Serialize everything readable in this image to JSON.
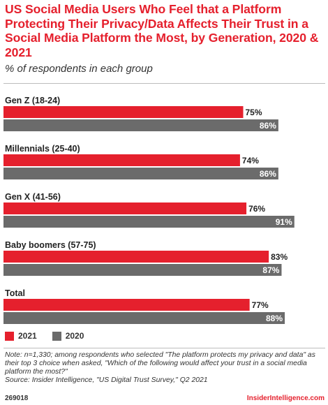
{
  "title": "US Social Media Users Who Feel that a Platform Protecting Their Privacy/Data Affects Their Trust in a Social Media Platform the Most, by Generation, 2020 & 2021",
  "subtitle": "% of respondents in each group",
  "colors": {
    "y2021": "#e5202d",
    "y2020": "#6b6b6b",
    "title": "#e5202d"
  },
  "legend": {
    "y2021": "2021",
    "y2020": "2020"
  },
  "note": "Note: n=1,330; among respondents who selected \"The platform protects my privacy and data\" as their top 3 choice when asked, \"Which of the following would affect your trust in a social media platform the most?\"",
  "source": "Source: Insider Intelligence, \"US Digital Trust Survey,\" Q2 2021",
  "footer": {
    "id": "269018",
    "brand": "InsiderIntelligence.com"
  },
  "chart_data": {
    "type": "bar",
    "orientation": "horizontal",
    "categories": [
      "Gen Z (18-24)",
      "Millennials (25-40)",
      "Gen X (41-56)",
      "Baby boomers (57-75)",
      "Total"
    ],
    "series": [
      {
        "name": "2021",
        "values": [
          75,
          74,
          76,
          83,
          77
        ]
      },
      {
        "name": "2020",
        "values": [
          86,
          86,
          91,
          87,
          88
        ]
      }
    ],
    "value_suffix": "%",
    "xlim": [
      0,
      100
    ],
    "grid": false,
    "legend_position": "bottom-left"
  }
}
